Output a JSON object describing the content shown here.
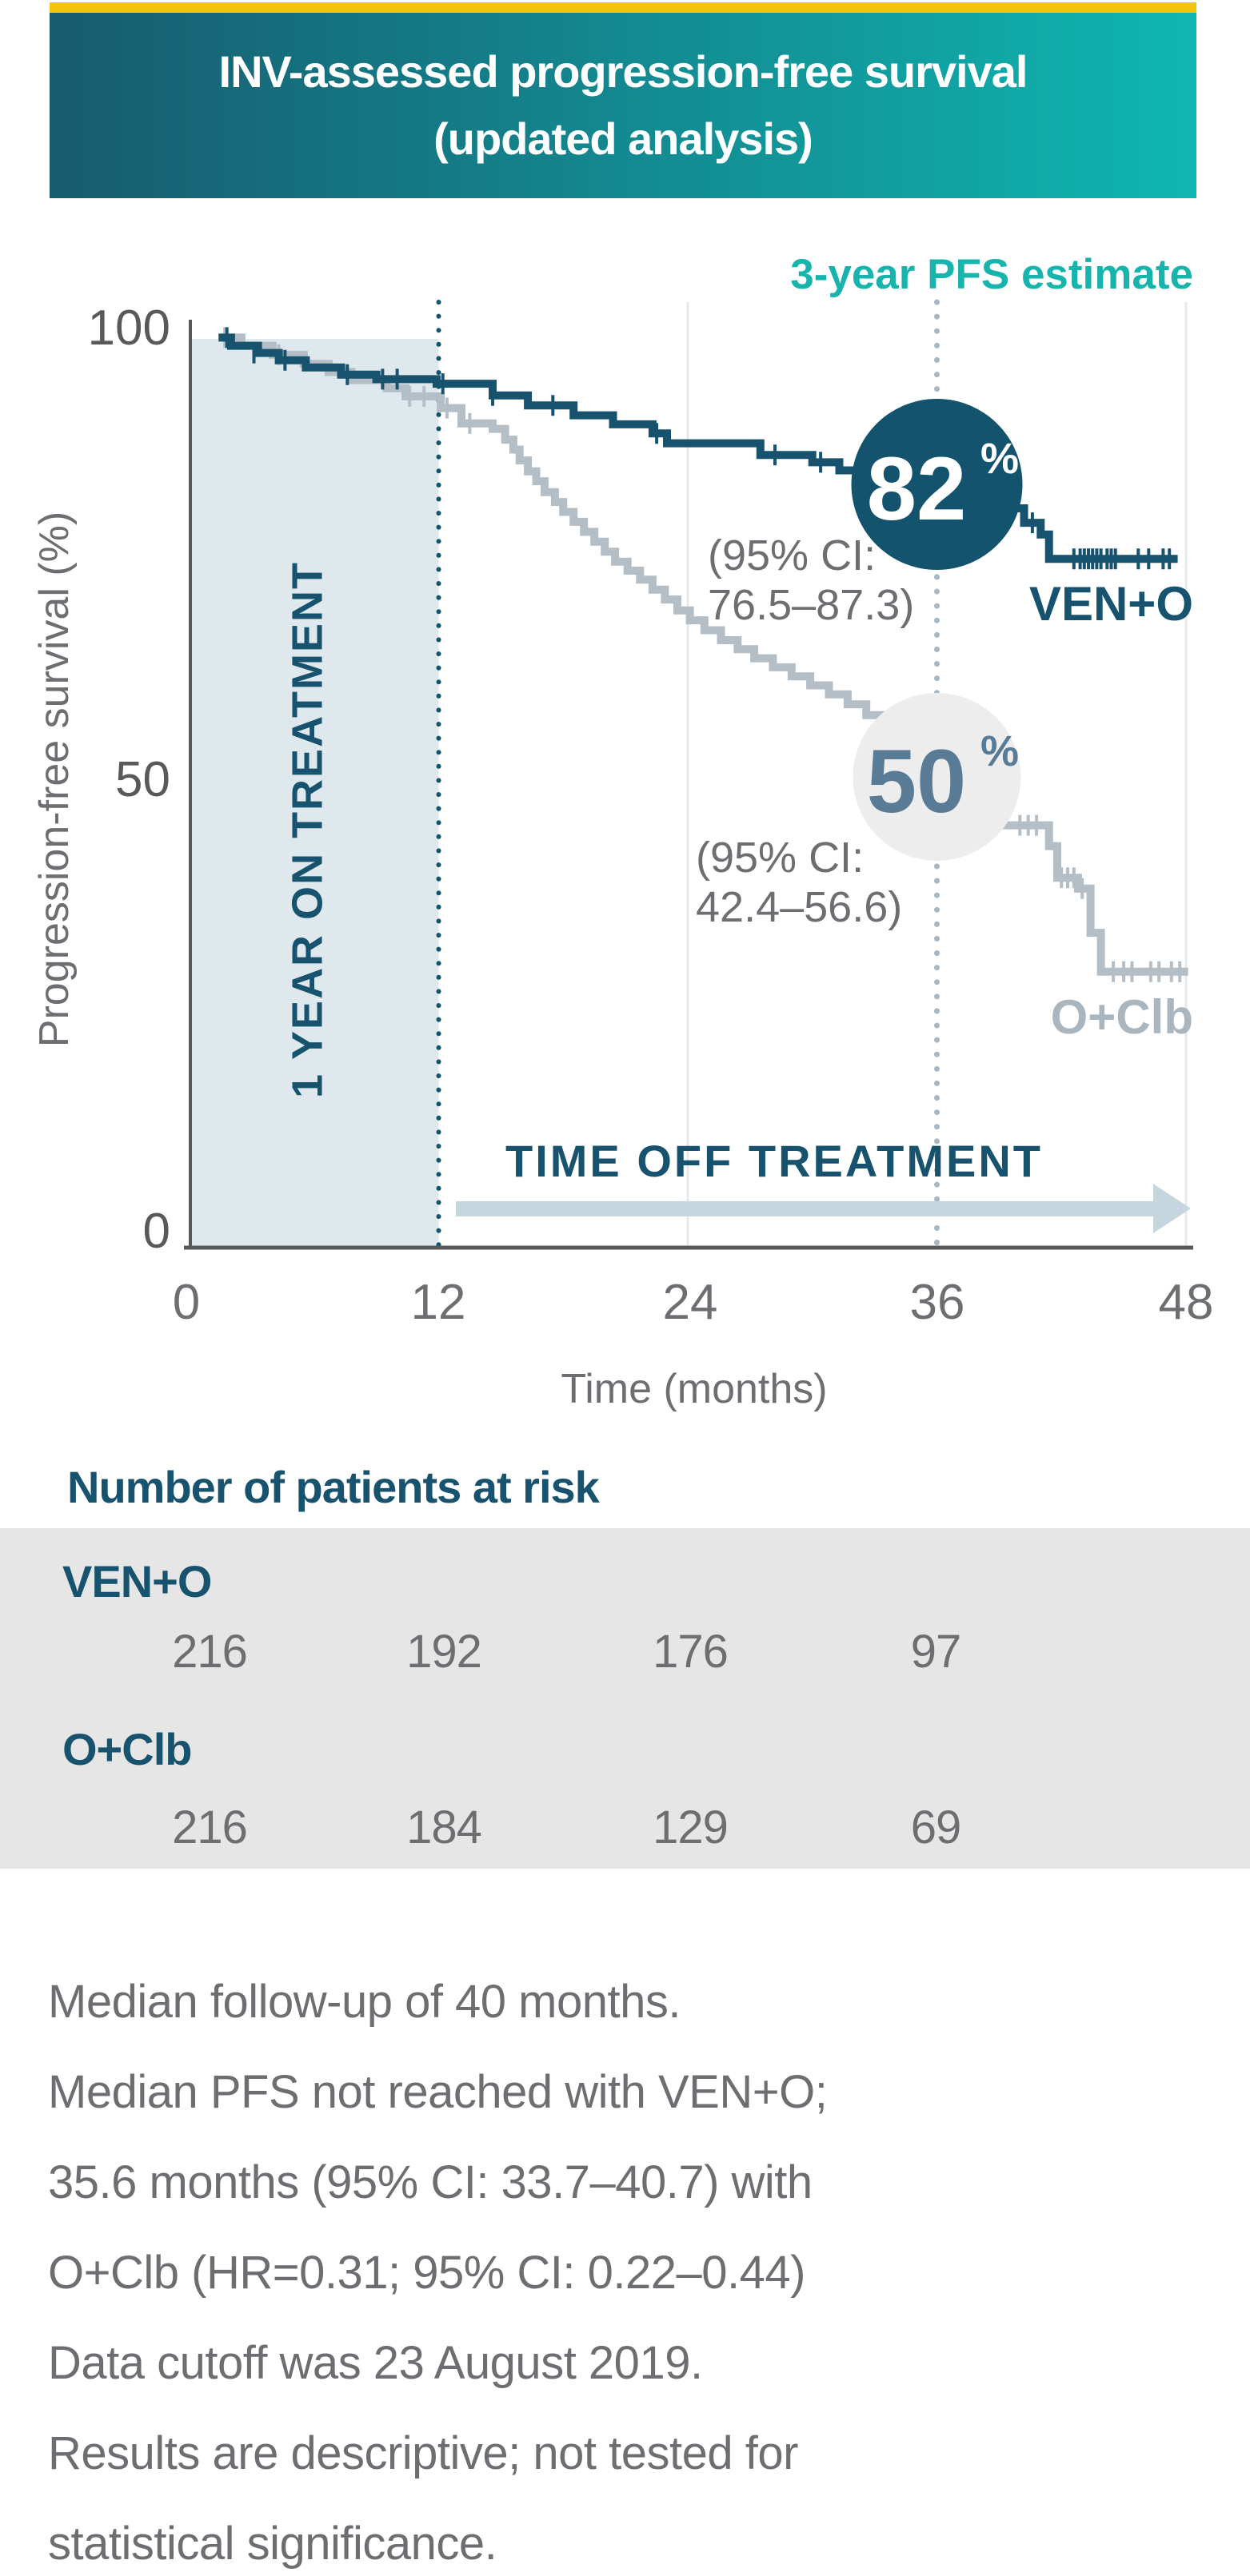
{
  "banner": {
    "title_line1": "INV-assessed progression-free survival",
    "title_line2": "(updated analysis)"
  },
  "chart": {
    "annotation_header": "3-year PFS estimate",
    "y_axis_label": "Progression-free survival (%)",
    "x_axis_label": "Time (months)",
    "on_treatment_label": "1 YEAR ON TREATMENT",
    "off_treatment_label": "TIME OFF TREATMENT",
    "percent_sign": "%",
    "ven_o_estimate": "82",
    "ven_o_ci_line1": "(95% CI:",
    "ven_o_ci_line2": "76.5–87.3)",
    "ven_o_label": "VEN+O",
    "o_clb_estimate": "50",
    "o_clb_ci_line1": "(95% CI:",
    "o_clb_ci_line2": "42.4–56.6)",
    "o_clb_label": "O+Clb"
  },
  "colors": {
    "accent_teal": "#16b4ac",
    "dark_teal": "#17536e",
    "series_gray": "#b4bec6",
    "series_gray_label": "#a9b6c0",
    "estimate_circle_dark": "#14536e",
    "estimate_circle_light": "#ededee",
    "estimate_text_light_circle": "#5a7b96",
    "shade_region": "#dfe9ed",
    "arrow": "#c6d6de",
    "axis_gray": "#58595b",
    "text_gray": "#6d6e71",
    "band_gray": "#e6e6e6",
    "yellow_accent": "#f3c50c"
  },
  "chart_data": {
    "type": "line",
    "subtype": "kaplan-meier-step",
    "title": "INV-assessed progression-free survival (updated analysis)",
    "xlabel": "Time (months)",
    "ylabel": "Progression-free survival (%)",
    "xlim": [
      0,
      48
    ],
    "ylim": [
      0,
      100
    ],
    "x_ticks": [
      0,
      12,
      24,
      36,
      48
    ],
    "y_ticks": [
      100,
      50,
      0
    ],
    "grid": "light vertical lines at 24 and 48; dotted vertical reference lines at 12 and 36",
    "legend_position": "curve-end labels",
    "annotations": {
      "on_treatment_region_months": [
        0,
        12
      ],
      "off_treatment_region_months": [
        12,
        48
      ],
      "three_year_mark_month": 36
    },
    "series": [
      {
        "id": "o-clb",
        "name": "O+Clb",
        "color": "#b4bec6",
        "three_year_pfs_pct": 50,
        "ci_95": "42.4–56.6",
        "end_month": 48.1,
        "points": [
          [
            1.4,
            98.9
          ],
          [
            2.5,
            98.0
          ],
          [
            4.0,
            97.0
          ],
          [
            5.5,
            96.0
          ],
          [
            6.7,
            95.1
          ],
          [
            7.8,
            94.2
          ],
          [
            9.5,
            93.3
          ],
          [
            10.4,
            92.4
          ],
          [
            12.1,
            91.1
          ],
          [
            13.1,
            89.4
          ],
          [
            14.6,
            88.8
          ],
          [
            15.2,
            87.6
          ],
          [
            15.6,
            86.5
          ],
          [
            15.9,
            85.3
          ],
          [
            16.3,
            84.1
          ],
          [
            16.7,
            83.0
          ],
          [
            17.1,
            81.8
          ],
          [
            17.6,
            80.7
          ],
          [
            18.0,
            79.6
          ],
          [
            18.5,
            78.5
          ],
          [
            19.0,
            77.4
          ],
          [
            19.5,
            76.3
          ],
          [
            20.0,
            75.2
          ],
          [
            20.5,
            74.1
          ],
          [
            21.1,
            73.1
          ],
          [
            21.7,
            72.1
          ],
          [
            22.3,
            71.0
          ],
          [
            22.9,
            69.9
          ],
          [
            23.5,
            68.7
          ],
          [
            24.1,
            67.6
          ],
          [
            24.8,
            66.5
          ],
          [
            25.6,
            65.4
          ],
          [
            26.4,
            64.4
          ],
          [
            27.2,
            63.4
          ],
          [
            28.1,
            62.4
          ],
          [
            29.0,
            61.4
          ],
          [
            29.9,
            60.4
          ],
          [
            30.8,
            59.4
          ],
          [
            31.7,
            58.3
          ],
          [
            32.6,
            57.1
          ],
          [
            33.4,
            55.8
          ],
          [
            34.2,
            54.4
          ],
          [
            35.0,
            52.9
          ],
          [
            35.8,
            51.3
          ],
          [
            36.6,
            49.8
          ],
          [
            37.4,
            48.3
          ],
          [
            38.2,
            46.6
          ],
          [
            39.0,
            44.9
          ],
          [
            41.4,
            42.6
          ],
          [
            41.8,
            39.1
          ],
          [
            42.8,
            37.9
          ],
          [
            43.4,
            33.0
          ],
          [
            43.9,
            28.7
          ]
        ],
        "censor_marks": [
          [
            1.7,
            98.9
          ],
          [
            4.3,
            97.0
          ],
          [
            10.6,
            92.4
          ],
          [
            11.3,
            92.4
          ],
          [
            12.4,
            91.1
          ],
          [
            13.5,
            89.4
          ],
          [
            40.0,
            44.9
          ],
          [
            40.4,
            44.9
          ],
          [
            40.8,
            44.9
          ],
          [
            42.0,
            39.1
          ],
          [
            42.3,
            39.1
          ],
          [
            42.6,
            39.1
          ],
          [
            43.0,
            37.9
          ],
          [
            44.5,
            28.7
          ],
          [
            45.0,
            28.7
          ],
          [
            45.4,
            28.7
          ],
          [
            46.3,
            28.7
          ],
          [
            46.7,
            28.7
          ],
          [
            47.3,
            28.7
          ],
          [
            47.7,
            28.7
          ]
        ]
      },
      {
        "id": "ven-o",
        "name": "VEN+O",
        "color": "#17536e",
        "three_year_pfs_pct": 82,
        "ci_95": "76.5–87.3",
        "end_month": 47.6,
        "points": [
          [
            1.4,
            98.9
          ],
          [
            2.0,
            98.0
          ],
          [
            3.3,
            97.2
          ],
          [
            4.3,
            96.4
          ],
          [
            5.6,
            95.6
          ],
          [
            7.3,
            94.8
          ],
          [
            9.0,
            94.3
          ],
          [
            11.9,
            93.8
          ],
          [
            14.6,
            92.5
          ],
          [
            16.3,
            91.4
          ],
          [
            18.5,
            90.3
          ],
          [
            20.4,
            89.3
          ],
          [
            22.3,
            88.3
          ],
          [
            23.0,
            87.2
          ],
          [
            27.5,
            85.9
          ],
          [
            30.0,
            85.1
          ],
          [
            31.3,
            84.2
          ],
          [
            32.6,
            83.3
          ],
          [
            34.0,
            82.5
          ],
          [
            36.0,
            82.0
          ],
          [
            38.2,
            81.0
          ],
          [
            39.4,
            80.0
          ],
          [
            40.2,
            78.4
          ],
          [
            41.0,
            77.1
          ],
          [
            41.4,
            74.4
          ]
        ],
        "censor_marks": [
          [
            1.8,
            98.9
          ],
          [
            3.1,
            97.2
          ],
          [
            4.6,
            96.4
          ],
          [
            7.6,
            94.8
          ],
          [
            9.3,
            94.3
          ],
          [
            10.0,
            94.3
          ],
          [
            12.2,
            93.8
          ],
          [
            14.6,
            92.5
          ],
          [
            17.5,
            91.4
          ],
          [
            22.5,
            88.3
          ],
          [
            28.2,
            85.9
          ],
          [
            30.4,
            85.1
          ],
          [
            35.2,
            82.0
          ],
          [
            39.7,
            80.0
          ],
          [
            40.6,
            78.4
          ],
          [
            42.6,
            74.4
          ],
          [
            42.9,
            74.4
          ],
          [
            43.1,
            74.4
          ],
          [
            43.3,
            74.4
          ],
          [
            43.5,
            74.4
          ],
          [
            43.7,
            74.4
          ],
          [
            43.9,
            74.4
          ],
          [
            44.2,
            74.4
          ],
          [
            44.4,
            74.4
          ],
          [
            44.6,
            74.4
          ],
          [
            45.7,
            74.4
          ],
          [
            46.2,
            74.4
          ],
          [
            46.9,
            74.4
          ],
          [
            47.2,
            74.4
          ]
        ]
      }
    ]
  },
  "risk_table": {
    "title": "Number of patients at risk",
    "time_points": [
      0,
      12,
      24,
      36
    ],
    "rows": [
      {
        "label": "VEN+O",
        "values": [
          "216",
          "192",
          "176",
          "97"
        ]
      },
      {
        "label": "O+Clb",
        "values": [
          "216",
          "184",
          "129",
          "69"
        ]
      }
    ]
  },
  "footnotes": [
    "Median follow-up of 40 months.",
    "Median PFS not reached with VEN+O;",
    "35.6 months (95% CI: 33.7–40.7) with",
    "O+Clb (HR=0.31; 95% CI: 0.22–0.44)",
    "Data cutoff was 23 August 2019.",
    "Results are descriptive; not tested for",
    "statistical significance."
  ]
}
